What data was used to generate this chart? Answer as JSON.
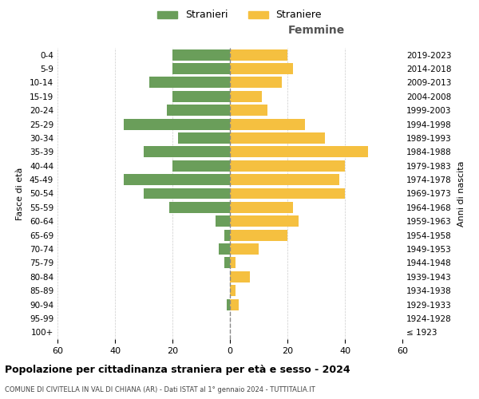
{
  "age_groups": [
    "100+",
    "95-99",
    "90-94",
    "85-89",
    "80-84",
    "75-79",
    "70-74",
    "65-69",
    "60-64",
    "55-59",
    "50-54",
    "45-49",
    "40-44",
    "35-39",
    "30-34",
    "25-29",
    "20-24",
    "15-19",
    "10-14",
    "5-9",
    "0-4"
  ],
  "birth_years": [
    "≤ 1923",
    "1924-1928",
    "1929-1933",
    "1934-1938",
    "1939-1943",
    "1944-1948",
    "1949-1953",
    "1954-1958",
    "1959-1963",
    "1964-1968",
    "1969-1973",
    "1974-1978",
    "1979-1983",
    "1984-1988",
    "1989-1993",
    "1994-1998",
    "1999-2003",
    "2004-2008",
    "2009-2013",
    "2014-2018",
    "2019-2023"
  ],
  "males": [
    0,
    0,
    1,
    0,
    0,
    2,
    4,
    2,
    5,
    21,
    30,
    37,
    20,
    30,
    18,
    37,
    22,
    20,
    28,
    20,
    20
  ],
  "females": [
    0,
    0,
    3,
    2,
    7,
    2,
    10,
    20,
    24,
    22,
    40,
    38,
    40,
    48,
    33,
    26,
    13,
    11,
    18,
    22,
    20
  ],
  "male_color": "#6a9e5a",
  "female_color": "#f5c040",
  "title": "Popolazione per cittadinanza straniera per età e sesso - 2024",
  "subtitle": "COMUNE DI CIVITELLA IN VAL DI CHIANA (AR) - Dati ISTAT al 1° gennaio 2024 - TUTTITALIA.IT",
  "xlabel_right": "Femmine",
  "ylabel_left": "Fasce di età",
  "ylabel_right": "Anni di nascita",
  "legend_stranieri": "Stranieri",
  "legend_straniere": "Straniere",
  "xlim": 60,
  "background_color": "#ffffff",
  "grid_color": "#cccccc",
  "bar_height": 0.8
}
